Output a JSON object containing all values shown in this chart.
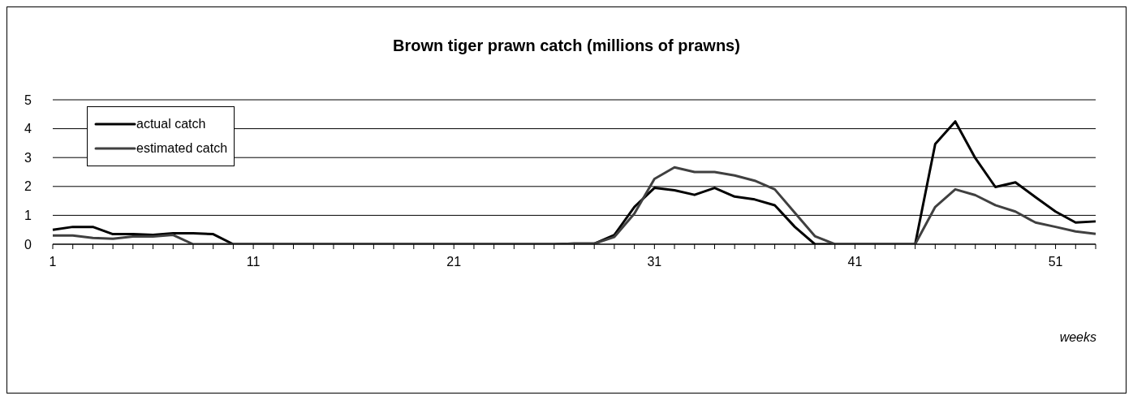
{
  "chart_data": {
    "type": "line",
    "title": "Brown tiger prawn catch (millions of prawns)",
    "xlabel": "weeks",
    "categories": [
      "1",
      null,
      null,
      null,
      null,
      null,
      null,
      null,
      null,
      null,
      "11",
      null,
      null,
      null,
      null,
      null,
      null,
      null,
      null,
      null,
      "21",
      null,
      null,
      null,
      null,
      null,
      null,
      null,
      null,
      null,
      "31",
      null,
      null,
      null,
      null,
      null,
      null,
      null,
      null,
      null,
      "41",
      null,
      null,
      null,
      null,
      null,
      null,
      null,
      null,
      null,
      "51",
      null,
      null
    ],
    "series": [
      {
        "name": "actual catch",
        "color": "#000000",
        "values": [
          0.5,
          0.6,
          0.6,
          0.35,
          0.35,
          0.32,
          0.38,
          0.38,
          0.35,
          0,
          0,
          0,
          0,
          0,
          0,
          0,
          0,
          0,
          0,
          0,
          0,
          0,
          0,
          0,
          0,
          0,
          0.02,
          0.02,
          0.32,
          1.29,
          1.95,
          1.87,
          1.71,
          1.95,
          1.65,
          1.55,
          1.35,
          0.6,
          0,
          0,
          0,
          0,
          0,
          0,
          3.47,
          4.25,
          2.98,
          1.98,
          2.14,
          1.63,
          1.13,
          0.75,
          0.79
        ]
      },
      {
        "name": "estimated catch",
        "color": "#404040",
        "values": [
          0.3,
          0.3,
          0.22,
          0.19,
          0.27,
          0.27,
          0.32,
          0,
          0,
          0,
          0,
          0,
          0,
          0,
          0,
          0,
          0,
          0,
          0,
          0,
          0,
          0,
          0,
          0,
          0,
          0,
          0.02,
          0.02,
          0.25,
          1.06,
          2.26,
          2.66,
          2.5,
          2.5,
          2.38,
          2.2,
          1.9,
          1.09,
          0.28,
          0,
          0,
          0,
          0,
          0,
          1.29,
          1.9,
          1.7,
          1.35,
          1.13,
          0.75,
          0.6,
          0.44,
          0.36
        ]
      }
    ],
    "ylim": [
      0,
      5
    ],
    "yticks": [
      0,
      1,
      2,
      3,
      4,
      5
    ],
    "grid": "y",
    "legend": "top left",
    "marker": "none",
    "line_style": "solid"
  }
}
